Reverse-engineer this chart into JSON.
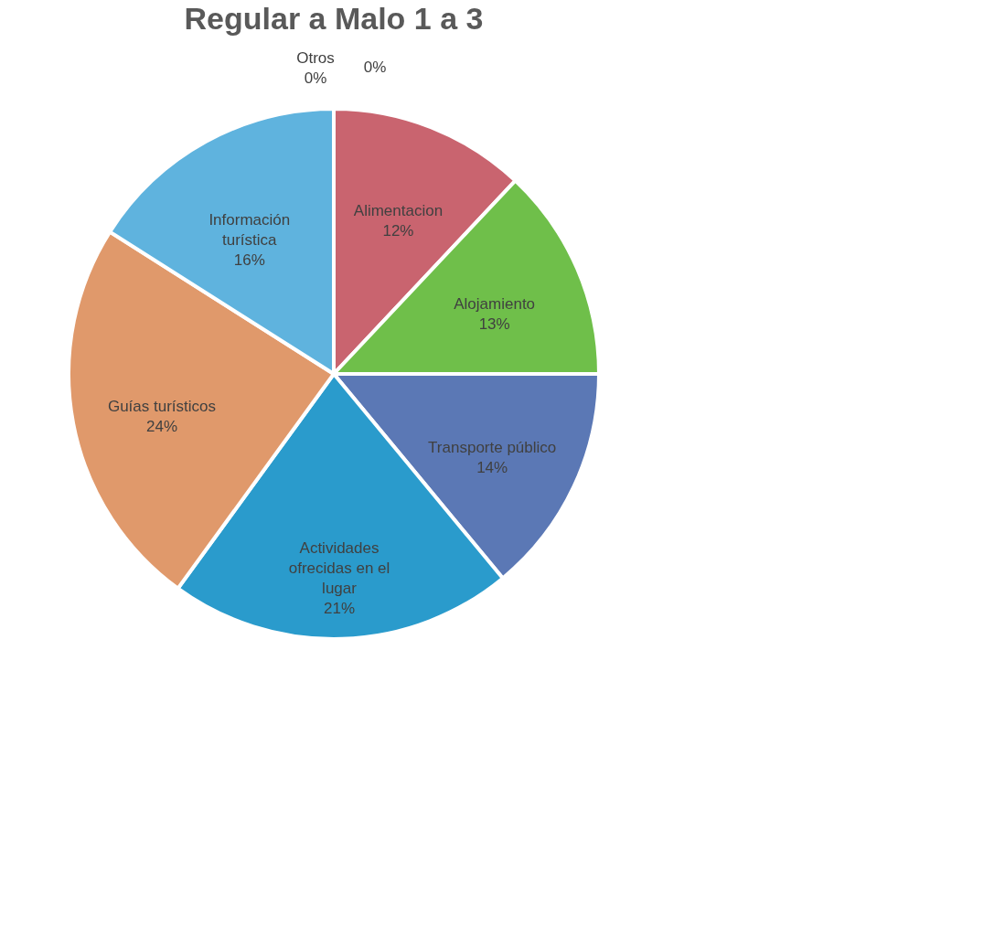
{
  "chart_data": {
    "type": "pie",
    "title": "Regular a Malo 1 a 3",
    "categories": [
      null,
      "Alimentacion",
      "Alojamiento",
      "Transporte público",
      "Actividades ofrecidas en el lugar",
      "Guías turísticos",
      "Información turística",
      "Otros"
    ],
    "values": [
      0,
      12,
      13,
      14,
      21,
      24,
      16,
      0
    ],
    "value_labels": [
      "0%",
      "12%",
      "13%",
      "14%",
      "21%",
      "24%",
      "16%",
      "0%"
    ],
    "colors": [
      "#a0a0a0",
      "#c9646f",
      "#6fbf4a",
      "#5b78b5",
      "#2a9bcc",
      "#e0996b",
      "#5fb3de",
      "#888888"
    ],
    "legend": false
  }
}
